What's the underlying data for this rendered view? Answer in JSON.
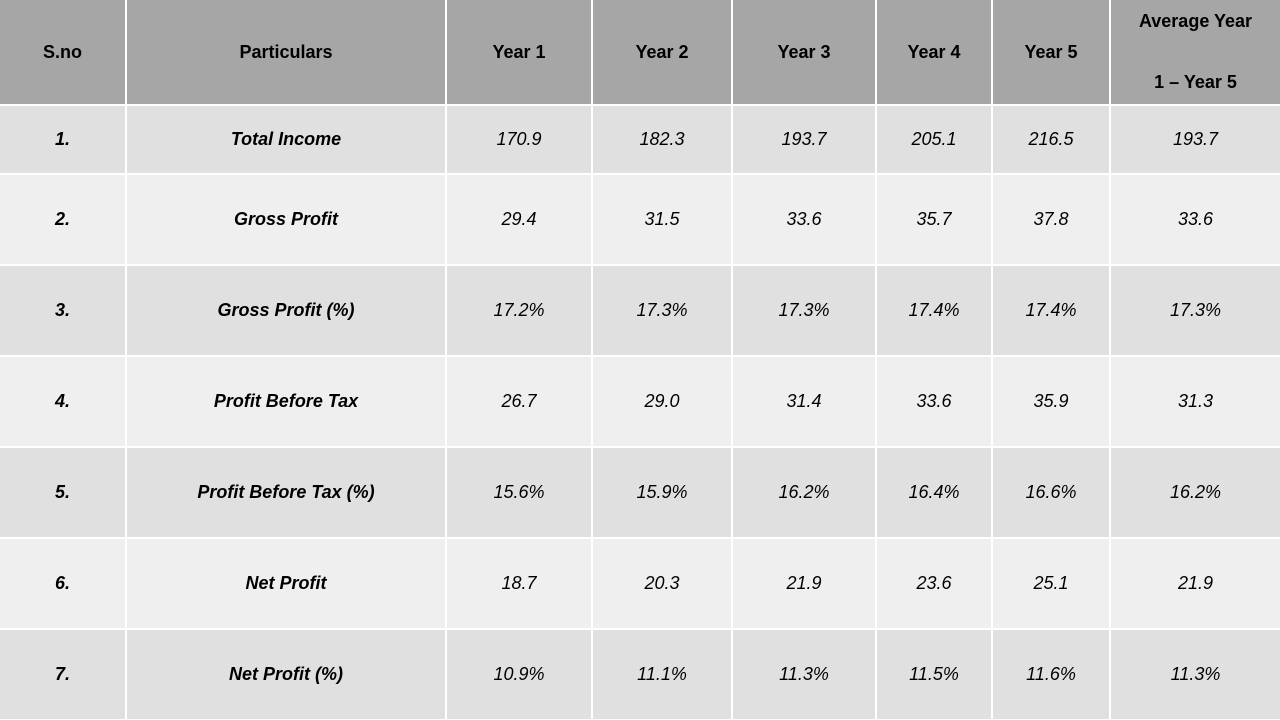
{
  "table": {
    "header": [
      "S.no",
      "Particulars",
      "Year 1",
      "Year 2",
      "Year 3",
      "Year 4",
      "Year 5",
      [
        "Average Year",
        "1 – Year 5"
      ]
    ],
    "rows": [
      [
        "1.",
        "Total Income",
        "170.9",
        "182.3",
        "193.7",
        "205.1",
        "216.5",
        "193.7"
      ],
      [
        "2.",
        "Gross Profit",
        "29.4",
        "31.5",
        "33.6",
        "35.7",
        "37.8",
        "33.6"
      ],
      [
        "3.",
        "Gross Profit (%)",
        "17.2%",
        "17.3%",
        "17.3%",
        "17.4%",
        "17.4%",
        "17.3%"
      ],
      [
        "4.",
        "Profit Before Tax",
        "26.7",
        "29.0",
        "31.4",
        "33.6",
        "35.9",
        "31.3"
      ],
      [
        "5.",
        "Profit Before Tax (%)",
        "15.6%",
        "15.9%",
        "16.2%",
        "16.4%",
        "16.6%",
        "16.2%"
      ],
      [
        "6.",
        "Net Profit",
        "18.7",
        "20.3",
        "21.9",
        "23.6",
        "25.1",
        "21.9"
      ],
      [
        "7.",
        "Net Profit (%)",
        "10.9%",
        "11.1%",
        "11.3%",
        "11.5%",
        "11.6%",
        "11.3%"
      ]
    ]
  }
}
